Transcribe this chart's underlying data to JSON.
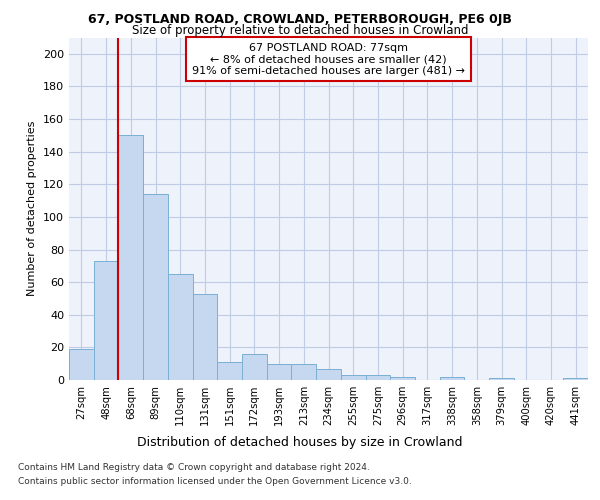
{
  "title_line1": "67, POSTLAND ROAD, CROWLAND, PETERBOROUGH, PE6 0JB",
  "title_line2": "Size of property relative to detached houses in Crowland",
  "xlabel": "Distribution of detached houses by size in Crowland",
  "ylabel": "Number of detached properties",
  "bar_color": "#c5d8f0",
  "bar_edge_color": "#7bafd4",
  "categories": [
    "27sqm",
    "48sqm",
    "68sqm",
    "89sqm",
    "110sqm",
    "131sqm",
    "151sqm",
    "172sqm",
    "193sqm",
    "213sqm",
    "234sqm",
    "255sqm",
    "275sqm",
    "296sqm",
    "317sqm",
    "338sqm",
    "358sqm",
    "379sqm",
    "400sqm",
    "420sqm",
    "441sqm"
  ],
  "values": [
    19,
    73,
    150,
    114,
    65,
    53,
    11,
    16,
    10,
    10,
    7,
    3,
    3,
    2,
    0,
    2,
    0,
    1,
    0,
    0,
    1
  ],
  "ylim": [
    0,
    210
  ],
  "yticks": [
    0,
    20,
    40,
    60,
    80,
    100,
    120,
    140,
    160,
    180,
    200
  ],
  "vline_x_index": 1.5,
  "annotation_text": "67 POSTLAND ROAD: 77sqm\n← 8% of detached houses are smaller (42)\n91% of semi-detached houses are larger (481) →",
  "annotation_box_color": "#ffffff",
  "annotation_box_edge": "#cc0000",
  "footer_line1": "Contains HM Land Registry data © Crown copyright and database right 2024.",
  "footer_line2": "Contains public sector information licensed under the Open Government Licence v3.0.",
  "background_color": "#eef2fb",
  "grid_color": "#c0cce4"
}
